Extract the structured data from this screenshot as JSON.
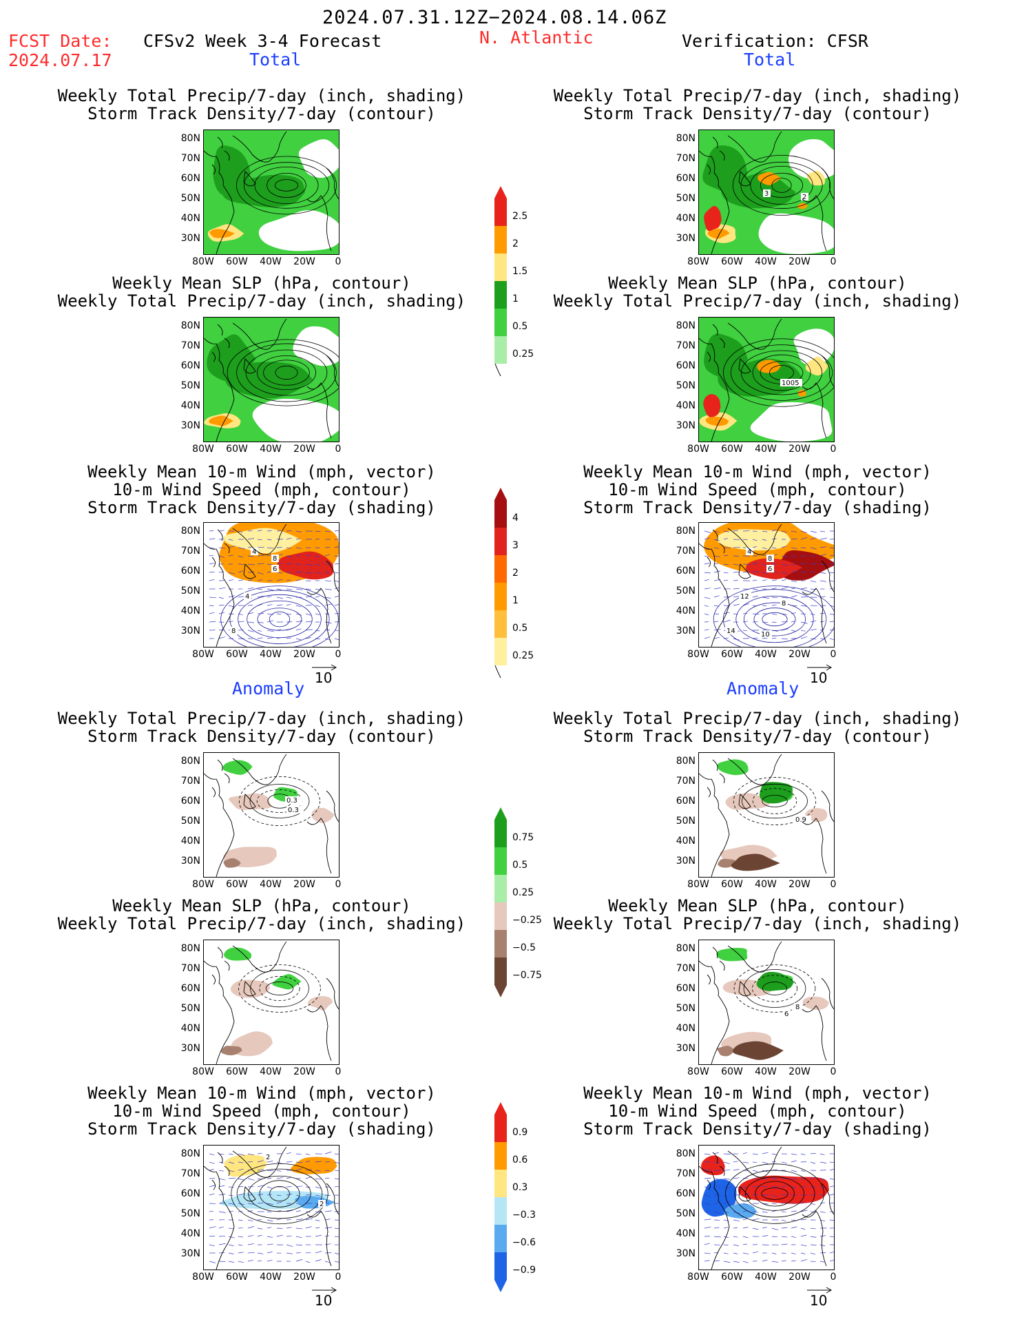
{
  "header": {
    "date_range": "2024.07.31.12Z−2024.08.14.06Z",
    "fcst_label": "FCST Date:",
    "fcst_date": "2024.07.17",
    "forecast_title": "CFSv2 Week 3-4 Forecast",
    "region": "N. Atlantic",
    "verification": "Verification: CFSR"
  },
  "section_labels": {
    "total": "Total",
    "anomaly": "Anomaly"
  },
  "panel_titles": {
    "precip_storm": [
      "Weekly Total Precip/7-day (inch, shading)",
      "Storm Track Density/7-day (contour)"
    ],
    "slp_precip": [
      "Weekly Mean SLP (hPa, contour)",
      "Weekly Total Precip/7-day (inch, shading)"
    ],
    "wind": [
      "Weekly Mean 10-m Wind (mph, vector)",
      "10-m Wind Speed (mph, contour)",
      "Storm Track Density/7-day (shading)"
    ]
  },
  "axes": {
    "lat_ticks": [
      "80N",
      "70N",
      "60N",
      "50N",
      "40N",
      "30N"
    ],
    "lon_ticks": [
      "80W",
      "60W",
      "40W",
      "20W",
      "0"
    ]
  },
  "vector_reference": "10",
  "contour_labels": {
    "fcst_total_wind": [
      "4",
      "8",
      "6",
      "4",
      "8"
    ],
    "obs_total_precip": [
      "3",
      "2"
    ],
    "obs_total_slp": [
      "1005"
    ],
    "obs_total_wind": [
      "4",
      "8",
      "6",
      "12",
      "14",
      "8",
      "10"
    ],
    "fcst_anom_precip": [
      "0.3",
      "0.3"
    ],
    "obs_anom_precip": [
      "0.9"
    ],
    "obs_anom_slp": [
      "8",
      "6"
    ],
    "fcst_anom_wind": [
      "2",
      "2"
    ]
  },
  "colorbars": {
    "precip_total": {
      "labels": [
        "2.5",
        "2",
        "1.5",
        "1",
        "0.5",
        "0.25"
      ],
      "colors": [
        "#e8231c",
        "#ff9a00",
        "#ffe680",
        "#1d9e1d",
        "#40d040",
        "#a8eea8"
      ]
    },
    "storm_total": {
      "labels": [
        "4",
        "3",
        "2",
        "1",
        "0.5",
        "0.25"
      ],
      "colors": [
        "#a50f0f",
        "#e0231c",
        "#ff6a00",
        "#ff9a00",
        "#ffbe3c",
        "#fff0a0"
      ]
    },
    "precip_anom": {
      "labels": [
        "0.75",
        "0.5",
        "0.25",
        "−0.25",
        "−0.5",
        "−0.75"
      ],
      "colors": [
        "#1d9e1d",
        "#40d040",
        "#a8eea8",
        "#e6c8bc",
        "#a88070",
        "#6b4434"
      ]
    },
    "storm_anom": {
      "labels": [
        "0.9",
        "0.6",
        "0.3",
        "−0.3",
        "−0.6",
        "−0.9"
      ],
      "colors": [
        "#e8231c",
        "#ff9a00",
        "#ffe680",
        "#b4e6f5",
        "#5aaaf0",
        "#1e64e6"
      ]
    }
  }
}
